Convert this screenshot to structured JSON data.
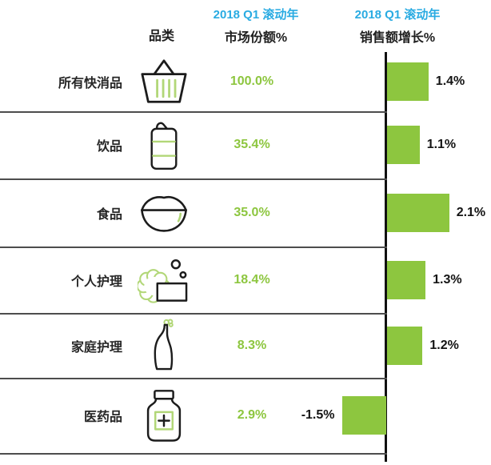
{
  "header": {
    "category_col": "品类",
    "share_col": {
      "period": "2018 Q1 滚动年",
      "metric": "市场份额%"
    },
    "growth_col": {
      "period": "2018 Q1 滚动年",
      "metric": "销售额增长%"
    }
  },
  "rows": [
    {
      "category": "所有快消品",
      "icon": "basket-icon",
      "share": "100.0%",
      "growth": "1.4%"
    },
    {
      "category": "饮品",
      "icon": "beverage-can-icon",
      "share": "35.4%",
      "growth": "1.1%"
    },
    {
      "category": "食品",
      "icon": "rice-bowl-icon",
      "share": "35.0%",
      "growth": "2.1%"
    },
    {
      "category": "个人护理",
      "icon": "soap-icon",
      "share": "18.4%",
      "growth": "1.3%"
    },
    {
      "category": "家庭护理",
      "icon": "detergent-bottle-icon",
      "share": "8.3%",
      "growth": "1.2%"
    },
    {
      "category": "医药品",
      "icon": "medicine-bottle-icon",
      "share": "2.9%",
      "growth": "-1.5%"
    }
  ],
  "chart_data": {
    "type": "bar",
    "orientation": "horizontal",
    "title": "",
    "period": "2018 Q1 滚动年",
    "categories": [
      "所有快消品",
      "饮品",
      "食品",
      "个人护理",
      "家庭护理",
      "医药品"
    ],
    "series": [
      {
        "name": "市场份额%",
        "values": [
          100.0,
          35.4,
          35.0,
          18.4,
          8.3,
          2.9
        ]
      },
      {
        "name": "销售额增长%",
        "values": [
          1.4,
          1.1,
          2.1,
          1.3,
          1.2,
          -1.5
        ]
      }
    ],
    "xlabel": "销售额增长%",
    "ylabel": "品类",
    "xlim": [
      -2.3,
      2.5
    ],
    "grid": false,
    "legend": false,
    "zero_axis": true
  },
  "colors": {
    "accent_green": "#8dc63f",
    "accent_blue": "#29abe2",
    "icon_green": "#b2d778",
    "line_gray": "#4d4d4d"
  }
}
